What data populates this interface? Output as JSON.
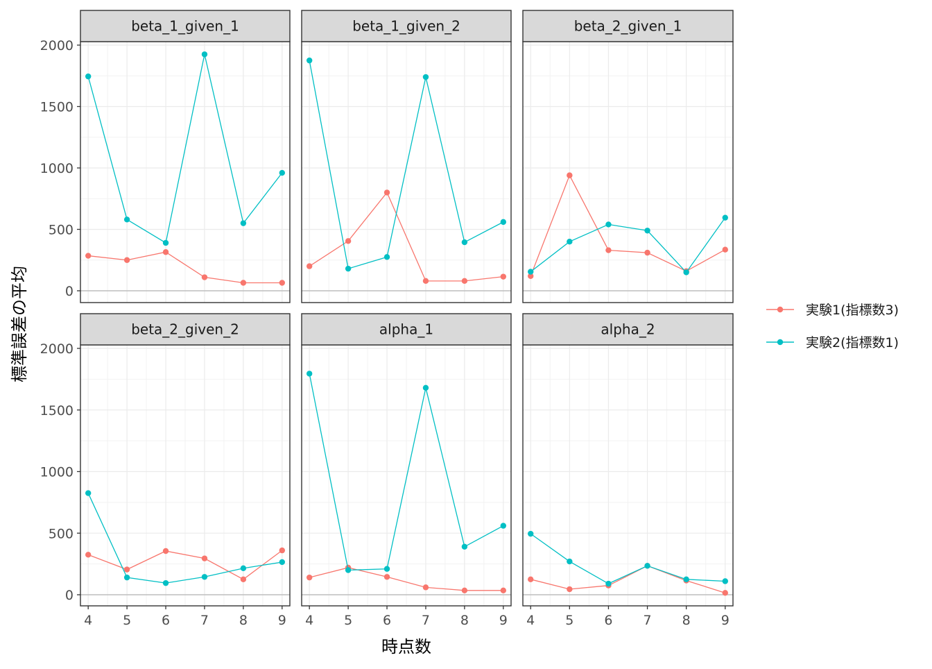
{
  "chart_data": {
    "type": "line",
    "layout": "facet-grid 2x3",
    "xlabel": "時点数",
    "ylabel": "標準誤差の平均",
    "x": [
      4,
      5,
      6,
      7,
      8,
      9
    ],
    "xlim": [
      3.8,
      9.2
    ],
    "ylim": [
      -100,
      2000
    ],
    "yticks": [
      0,
      500,
      1000,
      1500,
      2000
    ],
    "grid": true,
    "legend_position": "right",
    "legend": [
      {
        "name": "実験1(指標数3)",
        "color": "#F8766D"
      },
      {
        "name": "実験2(指標数1)",
        "color": "#00BFC4"
      }
    ],
    "panels": [
      {
        "title": "beta_1_given_1",
        "series": [
          {
            "name": "実験1(指標数3)",
            "values": [
              285,
              250,
              315,
              110,
              65,
              65
            ]
          },
          {
            "name": "実験2(指標数1)",
            "values": [
              1745,
              580,
              390,
              1925,
              550,
              960
            ]
          }
        ]
      },
      {
        "title": "beta_1_given_2",
        "series": [
          {
            "name": "実験1(指標数3)",
            "values": [
              200,
              405,
              800,
              80,
              80,
              115
            ]
          },
          {
            "name": "実験2(指標数1)",
            "values": [
              1875,
              180,
              275,
              1740,
              395,
              560
            ]
          }
        ]
      },
      {
        "title": "beta_2_given_1",
        "series": [
          {
            "name": "実験1(指標数3)",
            "values": [
              120,
              940,
              330,
              310,
              160,
              335
            ]
          },
          {
            "name": "実験2(指標数1)",
            "values": [
              155,
              400,
              540,
              490,
              150,
              595
            ]
          }
        ]
      },
      {
        "title": "beta_2_given_2",
        "series": [
          {
            "name": "実験1(指標数3)",
            "values": [
              325,
              205,
              355,
              295,
              125,
              360
            ]
          },
          {
            "name": "実験2(指標数1)",
            "values": [
              825,
              140,
              95,
              145,
              215,
              265
            ]
          }
        ]
      },
      {
        "title": "alpha_1",
        "series": [
          {
            "name": "実験1(指標数3)",
            "values": [
              140,
              220,
              145,
              60,
              35,
              35
            ]
          },
          {
            "name": "実験2(指標数1)",
            "values": [
              1795,
              200,
              210,
              1680,
              390,
              560
            ]
          }
        ]
      },
      {
        "title": "alpha_2",
        "series": [
          {
            "name": "実験1(指標数3)",
            "values": [
              125,
              45,
              75,
              235,
              115,
              15
            ]
          },
          {
            "name": "実験2(指標数1)",
            "values": [
              495,
              270,
              90,
              235,
              125,
              110
            ]
          }
        ]
      }
    ]
  }
}
